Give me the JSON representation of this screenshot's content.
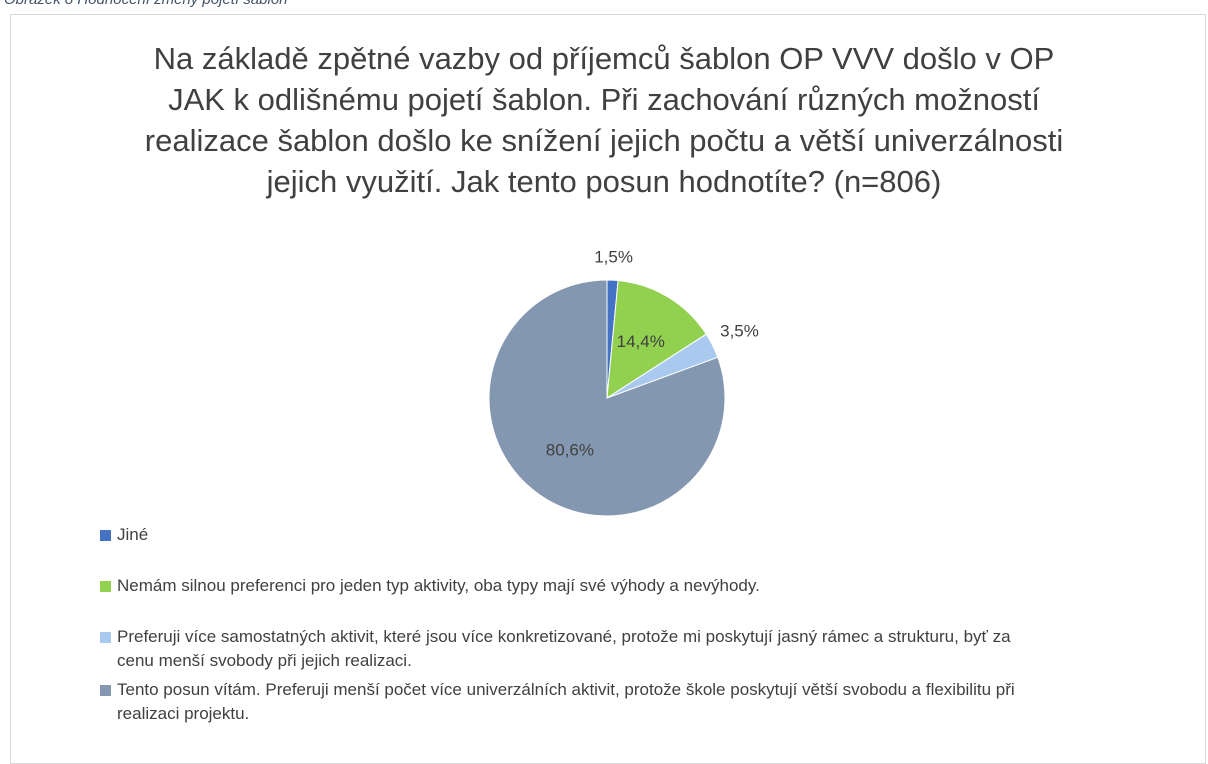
{
  "caption": "Obrázek 8 Hodnocení změny pojetí šablon",
  "chart_data": {
    "type": "pie",
    "title": "Na základě zpětné vazby od příjemců šablon OP VVV došlo v OP JAK k odlišnému pojetí šablon. Při zachování různých možností realizace šablon došlo ke snížení jejich počtu a větší univerzálnosti jejich využití. Jak tento posun hodnotíte? (n=806)",
    "categories": [
      "Jiné",
      "Nemám silnou preferenci pro jeden typ aktivity, oba typy mají své výhody a nevýhody.",
      "Preferuji více samostatných aktivit, které jsou více konkretizované, protože mi poskytují jasný rámec a strukturu, byť za cenu menší svobody při jejich realizaci.",
      "Tento posun vítám. Preferuji menší počet více univerzálních aktivit, protože škole poskytují větší svobodu a flexibilitu při realizaci projektu."
    ],
    "values": [
      1.5,
      14.4,
      3.5,
      80.6
    ],
    "value_labels": [
      "1,5%",
      "14,4%",
      "3,5%",
      "80,6%"
    ],
    "colors": [
      "#4472c4",
      "#92d050",
      "#a9c9ef",
      "#8497b0"
    ],
    "legend": "bottom"
  }
}
